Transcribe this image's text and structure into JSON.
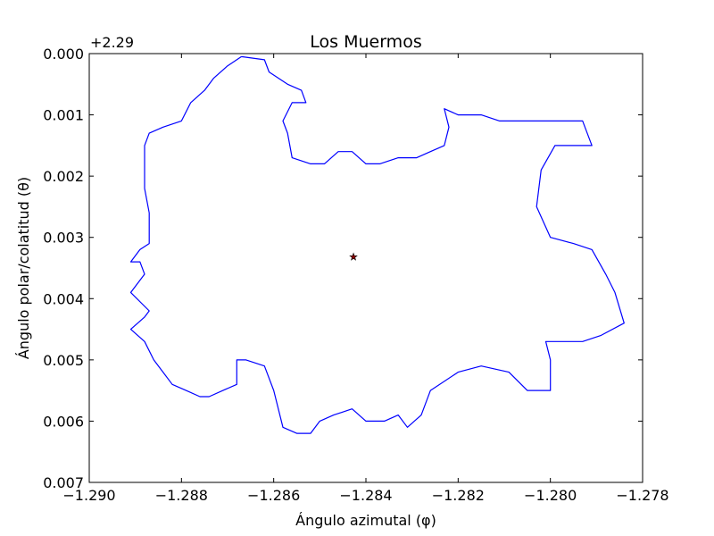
{
  "chart_data": {
    "type": "line",
    "title": "Los Muermos",
    "xlabel": "Ángulo azimutal (φ)",
    "ylabel": "Ángulo polar/colatitud (θ)",
    "y_offset_label": "+2.29",
    "xlim": [
      -1.29,
      -1.278
    ],
    "ylim": [
      0.0,
      0.007
    ],
    "y_inverted": true,
    "grid": false,
    "x_ticks": [
      {
        "value": -1.29,
        "label": "−1.290"
      },
      {
        "value": -1.288,
        "label": "−1.288"
      },
      {
        "value": -1.286,
        "label": "−1.286"
      },
      {
        "value": -1.284,
        "label": "−1.284"
      },
      {
        "value": -1.282,
        "label": "−1.282"
      },
      {
        "value": -1.28,
        "label": "−1.280"
      },
      {
        "value": -1.278,
        "label": "−1.278"
      }
    ],
    "y_ticks": [
      {
        "value": 0.0,
        "label": "0.000"
      },
      {
        "value": 0.001,
        "label": "0.001"
      },
      {
        "value": 0.002,
        "label": "0.002"
      },
      {
        "value": 0.003,
        "label": "0.003"
      },
      {
        "value": 0.004,
        "label": "0.004"
      },
      {
        "value": 0.005,
        "label": "0.005"
      },
      {
        "value": 0.006,
        "label": "0.006"
      },
      {
        "value": 0.007,
        "label": "0.007"
      }
    ],
    "series": [
      {
        "color": "#0000ff",
        "points": [
          [
            -1.2867,
            5e-05
          ],
          [
            -1.2862,
            0.0001
          ],
          [
            -1.2861,
            0.0003
          ],
          [
            -1.2857,
            0.0005
          ],
          [
            -1.2854,
            0.0006
          ],
          [
            -1.2853,
            0.0008
          ],
          [
            -1.2856,
            0.0008
          ],
          [
            -1.2858,
            0.0011
          ],
          [
            -1.2857,
            0.0013
          ],
          [
            -1.2856,
            0.0017
          ],
          [
            -1.2852,
            0.0018
          ],
          [
            -1.2849,
            0.0018
          ],
          [
            -1.2846,
            0.0016
          ],
          [
            -1.2843,
            0.0016
          ],
          [
            -1.284,
            0.0018
          ],
          [
            -1.2837,
            0.0018
          ],
          [
            -1.2833,
            0.0017
          ],
          [
            -1.2829,
            0.0017
          ],
          [
            -1.2826,
            0.0016
          ],
          [
            -1.2823,
            0.0015
          ],
          [
            -1.2822,
            0.0012
          ],
          [
            -1.2823,
            0.0009
          ],
          [
            -1.282,
            0.001
          ],
          [
            -1.2815,
            0.001
          ],
          [
            -1.2811,
            0.0011
          ],
          [
            -1.2806,
            0.0011
          ],
          [
            -1.2799,
            0.0011
          ],
          [
            -1.2793,
            0.0011
          ],
          [
            -1.2791,
            0.0015
          ],
          [
            -1.2796,
            0.0015
          ],
          [
            -1.2799,
            0.0015
          ],
          [
            -1.2802,
            0.0019
          ],
          [
            -1.2803,
            0.0025
          ],
          [
            -1.28,
            0.003
          ],
          [
            -1.2795,
            0.0031
          ],
          [
            -1.2791,
            0.0032
          ],
          [
            -1.2788,
            0.0036
          ],
          [
            -1.2786,
            0.0039
          ],
          [
            -1.2784,
            0.0044
          ],
          [
            -1.2789,
            0.0046
          ],
          [
            -1.2793,
            0.0047
          ],
          [
            -1.2798,
            0.0047
          ],
          [
            -1.2801,
            0.0047
          ],
          [
            -1.28,
            0.005
          ],
          [
            -1.28,
            0.0055
          ],
          [
            -1.2805,
            0.0055
          ],
          [
            -1.2809,
            0.0052
          ],
          [
            -1.2815,
            0.0051
          ],
          [
            -1.282,
            0.0052
          ],
          [
            -1.2826,
            0.0055
          ],
          [
            -1.2828,
            0.0059
          ],
          [
            -1.2831,
            0.0061
          ],
          [
            -1.2833,
            0.0059
          ],
          [
            -1.2836,
            0.006
          ],
          [
            -1.284,
            0.006
          ],
          [
            -1.2843,
            0.0058
          ],
          [
            -1.2847,
            0.0059
          ],
          [
            -1.285,
            0.006
          ],
          [
            -1.2852,
            0.0062
          ],
          [
            -1.2855,
            0.0062
          ],
          [
            -1.2858,
            0.0061
          ],
          [
            -1.286,
            0.0055
          ],
          [
            -1.2862,
            0.0051
          ],
          [
            -1.2866,
            0.005
          ],
          [
            -1.2868,
            0.005
          ],
          [
            -1.2868,
            0.0054
          ],
          [
            -1.2871,
            0.0055
          ],
          [
            -1.2874,
            0.0056
          ],
          [
            -1.2876,
            0.0056
          ],
          [
            -1.2879,
            0.0055
          ],
          [
            -1.2882,
            0.0054
          ],
          [
            -1.2884,
            0.0052
          ],
          [
            -1.2886,
            0.005
          ],
          [
            -1.2888,
            0.0047
          ],
          [
            -1.2891,
            0.0045
          ],
          [
            -1.2888,
            0.0043
          ],
          [
            -1.2887,
            0.0042
          ],
          [
            -1.2891,
            0.0039
          ],
          [
            -1.2888,
            0.0036
          ],
          [
            -1.2889,
            0.0034
          ],
          [
            -1.2891,
            0.0034
          ],
          [
            -1.2889,
            0.0032
          ],
          [
            -1.2887,
            0.0031
          ],
          [
            -1.2887,
            0.0026
          ],
          [
            -1.2888,
            0.0022
          ],
          [
            -1.2888,
            0.0018
          ],
          [
            -1.2888,
            0.0015
          ],
          [
            -1.2887,
            0.0013
          ],
          [
            -1.2884,
            0.0012
          ],
          [
            -1.288,
            0.0011
          ],
          [
            -1.2878,
            0.0008
          ],
          [
            -1.2875,
            0.0006
          ],
          [
            -1.2873,
            0.0004
          ],
          [
            -1.287,
            0.0002
          ],
          [
            -1.2867,
            5e-05
          ]
        ]
      }
    ],
    "marker": {
      "x": -1.28427,
      "y": 0.00332,
      "color": "#8b0000",
      "symbol": "star"
    }
  }
}
